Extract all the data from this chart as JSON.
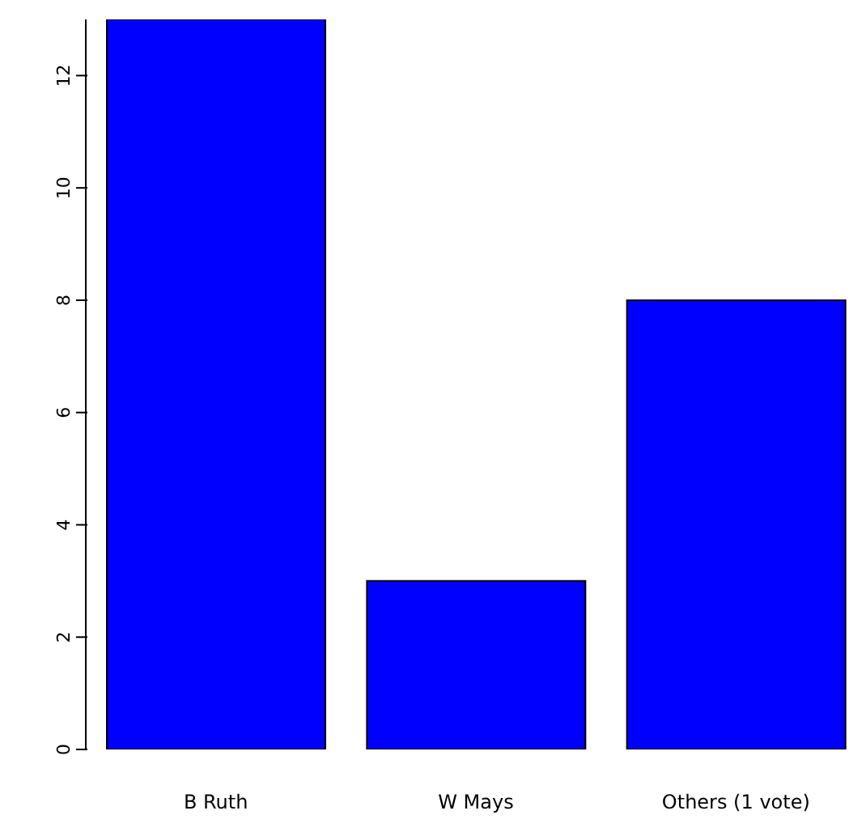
{
  "chart_data": {
    "type": "bar",
    "categories": [
      "B Ruth",
      "W Mays",
      "Others (1 vote)"
    ],
    "values": [
      13,
      3,
      8
    ],
    "color": "#0000ff",
    "ylim": [
      0,
      13
    ],
    "yticks": [
      0,
      2,
      4,
      6,
      8,
      10,
      12
    ],
    "grid": false,
    "legend": false
  }
}
